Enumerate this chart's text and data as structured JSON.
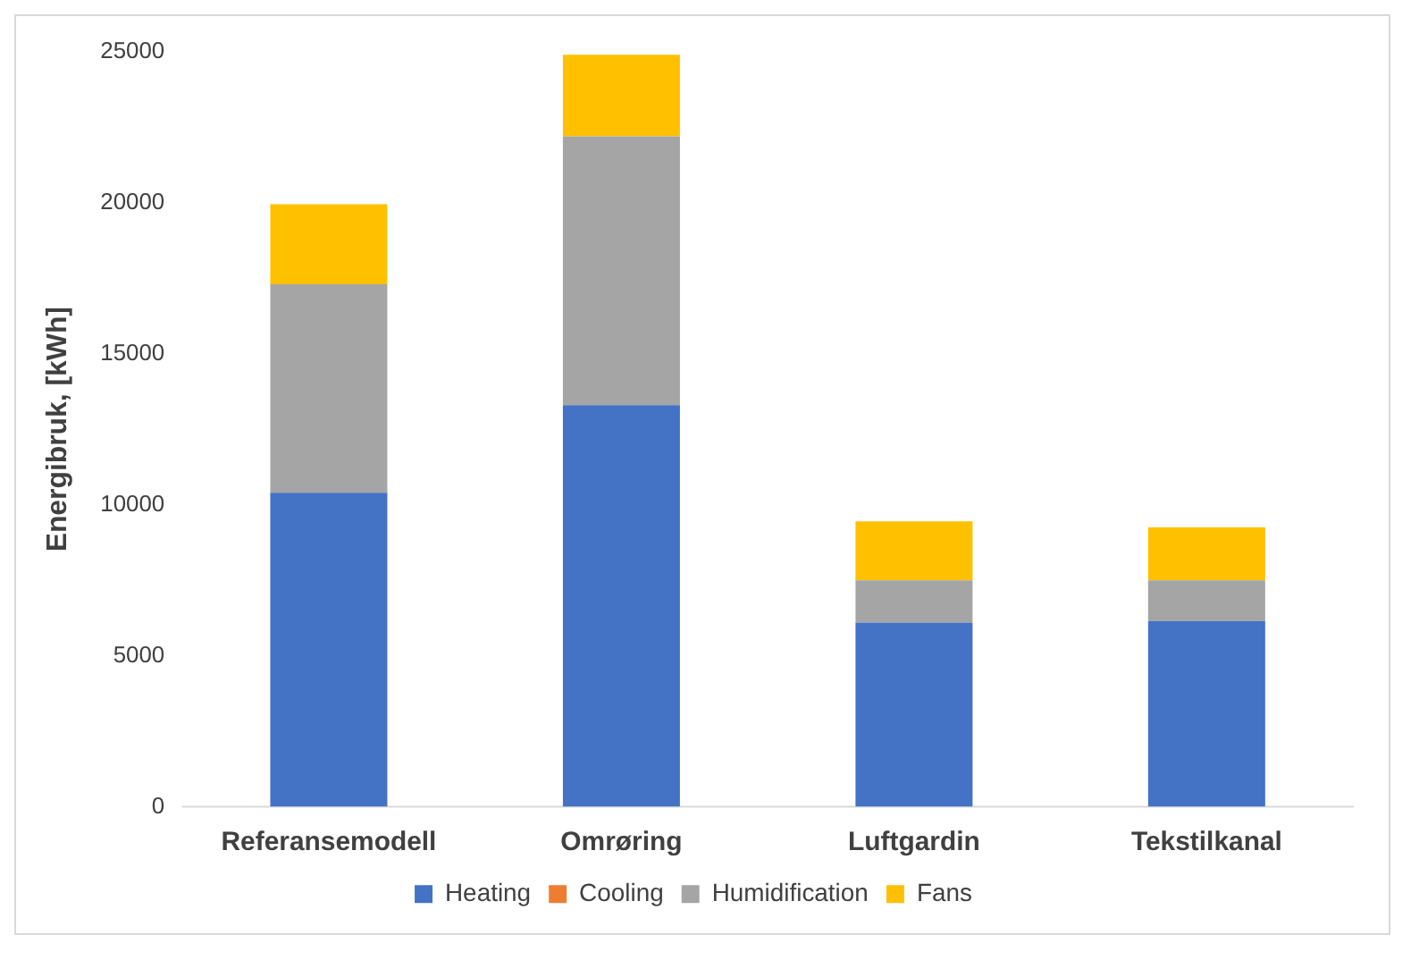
{
  "chart_data": {
    "type": "bar",
    "stacked": true,
    "ylabel": "Energibruk, [kWh]",
    "categories": [
      "Referansemodell",
      "Omrøring",
      "Luftgardin",
      "Tekstilkanal"
    ],
    "series": [
      {
        "name": "Heating",
        "color": "#4472c4",
        "values": [
          10400,
          13300,
          6100,
          6150
        ]
      },
      {
        "name": "Cooling",
        "color": "#ed7d31",
        "values": [
          0,
          0,
          0,
          0
        ]
      },
      {
        "name": "Humidification",
        "color": "#a5a5a5",
        "values": [
          6900,
          8900,
          1400,
          1350
        ]
      },
      {
        "name": "Fans",
        "color": "#ffc000",
        "values": [
          2650,
          2700,
          1950,
          1750
        ]
      }
    ],
    "ylim": [
      0,
      25000
    ],
    "yticks": [
      0,
      5000,
      10000,
      15000,
      20000,
      25000
    ],
    "grid": false,
    "legend": "bottom"
  }
}
